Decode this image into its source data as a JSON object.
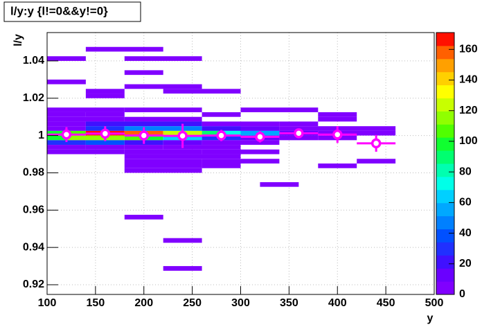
{
  "chart_data": {
    "type": "heatmap",
    "title": "l/y:y {l!=0&&y!=0}",
    "x_label": "y",
    "y_label": "l/y",
    "xlim": [
      100,
      500
    ],
    "xticks": [
      100,
      150,
      200,
      250,
      300,
      350,
      400,
      450,
      500
    ],
    "ylim": [
      0.9148,
      1.0552
    ],
    "yticks": [
      0.92,
      0.94,
      0.96,
      0.98,
      1,
      1.02,
      1.04
    ],
    "zlim": [
      0,
      171
    ],
    "zticks": [
      0,
      20,
      40,
      60,
      80,
      100,
      120,
      140,
      160
    ],
    "grid": true,
    "palette": [
      "#8000ff",
      "#6a00ff",
      "#4010ff",
      "#2030ff",
      "#0050ff",
      "#0080ff",
      "#00a8ff",
      "#00d0ff",
      "#00ffe8",
      "#00ffb0",
      "#00ff70",
      "#10ff30",
      "#50ff00",
      "#90ff00",
      "#c8ff00",
      "#ffff00",
      "#ffd000",
      "#ffa000",
      "#ff6000",
      "#ff1000"
    ],
    "cells": [
      [
        140,
        220,
        1.045,
        1.0475,
        3
      ],
      [
        100,
        140,
        1.04,
        1.0425,
        2
      ],
      [
        180,
        260,
        1.04,
        1.0425,
        2
      ],
      [
        180,
        220,
        1.0325,
        1.035,
        2
      ],
      [
        100,
        140,
        1.0275,
        1.03,
        2
      ],
      [
        180,
        260,
        1.025,
        1.0275,
        3
      ],
      [
        140,
        180,
        1.0225,
        1.025,
        2
      ],
      [
        220,
        300,
        1.0225,
        1.025,
        3
      ],
      [
        140,
        180,
        1.02,
        1.0225,
        3
      ],
      [
        100,
        180,
        1.0125,
        1.015,
        4
      ],
      [
        180,
        260,
        1.0125,
        1.015,
        5
      ],
      [
        300,
        380,
        1.0125,
        1.015,
        3
      ],
      [
        100,
        140,
        1.01,
        1.0125,
        3
      ],
      [
        140,
        180,
        1.01,
        1.0125,
        5
      ],
      [
        260,
        300,
        1.01,
        1.0125,
        4
      ],
      [
        380,
        420,
        1.01,
        1.0125,
        3
      ],
      [
        100,
        180,
        1.0075,
        1.01,
        6
      ],
      [
        180,
        260,
        1.0075,
        1.01,
        8
      ],
      [
        380,
        420,
        1.0075,
        1.01,
        4
      ],
      [
        100,
        140,
        1.005,
        1.0075,
        8
      ],
      [
        140,
        260,
        1.005,
        1.0075,
        20
      ],
      [
        260,
        340,
        1.005,
        1.0075,
        6
      ],
      [
        340,
        380,
        1.005,
        1.0075,
        3
      ],
      [
        100,
        140,
        1.0025,
        1.005,
        8
      ],
      [
        140,
        180,
        1.0025,
        1.005,
        30
      ],
      [
        180,
        260,
        1.0025,
        1.005,
        45
      ],
      [
        260,
        300,
        1.0025,
        1.005,
        25
      ],
      [
        300,
        340,
        1.0025,
        1.005,
        10
      ],
      [
        340,
        460,
        1.0025,
        1.005,
        5
      ],
      [
        100,
        120,
        1.0,
        1.0025,
        100
      ],
      [
        120,
        140,
        1.0,
        1.0025,
        110
      ],
      [
        140,
        180,
        1.0,
        1.0025,
        165
      ],
      [
        180,
        220,
        1.0,
        1.0025,
        160
      ],
      [
        220,
        240,
        1.0,
        1.0025,
        125
      ],
      [
        240,
        260,
        1.0,
        1.0025,
        120
      ],
      [
        260,
        280,
        1.0,
        1.0025,
        90
      ],
      [
        280,
        300,
        1.0,
        1.0025,
        70
      ],
      [
        300,
        340,
        1.0,
        1.0025,
        55
      ],
      [
        340,
        380,
        1.0,
        1.0025,
        10
      ],
      [
        380,
        460,
        1.0,
        1.0025,
        5
      ],
      [
        100,
        120,
        0.9975,
        1.0,
        95
      ],
      [
        120,
        180,
        0.9975,
        1.0,
        115
      ],
      [
        180,
        200,
        0.9975,
        1.0,
        110
      ],
      [
        200,
        220,
        0.9975,
        1.0,
        100
      ],
      [
        220,
        260,
        0.9975,
        1.0,
        60
      ],
      [
        260,
        300,
        0.9975,
        1.0,
        30
      ],
      [
        300,
        340,
        0.9975,
        1.0,
        15
      ],
      [
        340,
        380,
        0.9975,
        1.0,
        5
      ],
      [
        380,
        420,
        0.9975,
        1.0,
        3
      ],
      [
        100,
        140,
        0.995,
        0.9975,
        30
      ],
      [
        140,
        180,
        0.995,
        0.9975,
        35
      ],
      [
        180,
        220,
        0.995,
        0.9975,
        20
      ],
      [
        220,
        260,
        0.995,
        0.9975,
        15
      ],
      [
        260,
        340,
        0.995,
        0.9975,
        8
      ],
      [
        100,
        140,
        0.9925,
        0.995,
        5
      ],
      [
        140,
        180,
        0.9925,
        0.995,
        8
      ],
      [
        180,
        220,
        0.9925,
        0.995,
        6
      ],
      [
        220,
        300,
        0.9925,
        0.995,
        4
      ],
      [
        100,
        180,
        0.99,
        0.9925,
        3
      ],
      [
        180,
        260,
        0.99,
        0.9925,
        3
      ],
      [
        260,
        340,
        0.99,
        0.9925,
        3
      ],
      [
        180,
        300,
        0.9875,
        0.99,
        3
      ],
      [
        180,
        260,
        0.985,
        0.9875,
        2
      ],
      [
        260,
        340,
        0.985,
        0.9875,
        2
      ],
      [
        420,
        460,
        0.985,
        0.9875,
        2
      ],
      [
        180,
        260,
        0.9825,
        0.985,
        2
      ],
      [
        260,
        300,
        0.9825,
        0.985,
        2
      ],
      [
        380,
        420,
        0.9825,
        0.985,
        2
      ],
      [
        180,
        260,
        0.98,
        0.9825,
        2
      ],
      [
        320,
        360,
        0.9725,
        0.975,
        2
      ],
      [
        180,
        220,
        0.955,
        0.9575,
        2
      ],
      [
        220,
        260,
        0.9425,
        0.945,
        2
      ],
      [
        220,
        260,
        0.9275,
        0.93,
        2
      ]
    ],
    "profile": {
      "color": "#ff00ff",
      "x": [
        120,
        160,
        200,
        240,
        280,
        320,
        360,
        400,
        440
      ],
      "y": [
        1.0005,
        1.001,
        1.0,
        0.9998,
        1.0,
        0.9993,
        1.0012,
        1.0005,
        0.9958
      ],
      "xerr": [
        20,
        20,
        20,
        20,
        20,
        20,
        20,
        20,
        20
      ],
      "yerr": [
        0.004,
        0.004,
        0.0045,
        0.0065,
        0.003,
        0.003,
        0.001,
        0.0045,
        0.0045
      ]
    }
  }
}
